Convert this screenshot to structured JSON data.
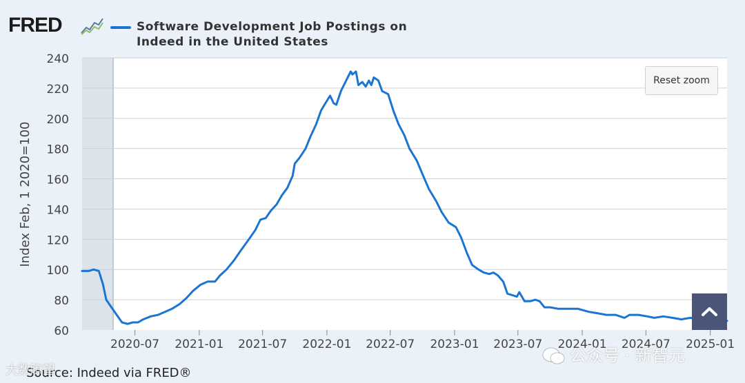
{
  "header": {
    "logo_text": "FRED",
    "legend_label_line1": "Software Development Job Postings on",
    "legend_label_line2": "Indeed in the United States"
  },
  "controls": {
    "reset_zoom_label": "Reset zoom",
    "scroll_top_icon": "chevron-up-icon"
  },
  "footer": {
    "source": "Source: Indeed via FRED®"
  },
  "watermarks": {
    "left": "大数瞭望",
    "right": "公众号 · 新智元"
  },
  "colors": {
    "series": "#1a75d2",
    "recession_shade": "#dde3ea",
    "plot_bg": "#ffffff",
    "page_bg": "#eaf1f8",
    "grid": "#d0d0d0"
  },
  "chart_data": {
    "type": "line",
    "title": "Software Development Job Postings on Indeed in the United States",
    "xlabel": "",
    "ylabel": "Index Feb, 1 2020=100",
    "ylim": [
      60,
      240
    ],
    "yticks": [
      60,
      80,
      100,
      120,
      140,
      160,
      180,
      200,
      220,
      240
    ],
    "xlim": [
      "2020-02-01",
      "2025-02-18"
    ],
    "xticks": [
      "2020-07",
      "2021-01",
      "2021-07",
      "2022-01",
      "2022-07",
      "2023-01",
      "2023-07",
      "2024-01",
      "2024-07",
      "2025-01"
    ],
    "grid": true,
    "legend_position": "top",
    "recession_shading": [
      "2020-02-01",
      "2020-04-30"
    ],
    "series": [
      {
        "name": "Software Development Job Postings on Indeed in the United States",
        "points": [
          [
            "2020-02-01",
            99
          ],
          [
            "2020-02-20",
            99
          ],
          [
            "2020-03-05",
            100
          ],
          [
            "2020-03-20",
            99
          ],
          [
            "2020-04-01",
            90
          ],
          [
            "2020-04-10",
            80
          ],
          [
            "2020-04-25",
            75
          ],
          [
            "2020-05-10",
            70
          ],
          [
            "2020-05-25",
            65
          ],
          [
            "2020-06-10",
            64
          ],
          [
            "2020-06-25",
            65
          ],
          [
            "2020-07-10",
            65
          ],
          [
            "2020-07-25",
            67
          ],
          [
            "2020-08-15",
            69
          ],
          [
            "2020-09-05",
            70
          ],
          [
            "2020-09-25",
            72
          ],
          [
            "2020-10-15",
            74
          ],
          [
            "2020-11-05",
            77
          ],
          [
            "2020-11-25",
            81
          ],
          [
            "2020-12-15",
            86
          ],
          [
            "2021-01-05",
            90
          ],
          [
            "2021-01-25",
            92
          ],
          [
            "2021-02-15",
            92
          ],
          [
            "2021-03-01",
            96
          ],
          [
            "2021-03-20",
            100
          ],
          [
            "2021-04-10",
            106
          ],
          [
            "2021-05-01",
            113
          ],
          [
            "2021-05-20",
            119
          ],
          [
            "2021-06-10",
            126
          ],
          [
            "2021-06-25",
            133
          ],
          [
            "2021-07-10",
            134
          ],
          [
            "2021-07-25",
            139
          ],
          [
            "2021-08-10",
            143
          ],
          [
            "2021-08-25",
            149
          ],
          [
            "2021-09-10",
            154
          ],
          [
            "2021-09-25",
            162
          ],
          [
            "2021-10-01",
            170
          ],
          [
            "2021-10-15",
            174
          ],
          [
            "2021-11-01",
            180
          ],
          [
            "2021-11-15",
            188
          ],
          [
            "2021-12-01",
            196
          ],
          [
            "2021-12-15",
            205
          ],
          [
            "2021-12-25",
            209
          ],
          [
            "2022-01-10",
            215
          ],
          [
            "2022-01-20",
            210
          ],
          [
            "2022-01-28",
            209
          ],
          [
            "2022-02-10",
            218
          ],
          [
            "2022-02-25",
            225
          ],
          [
            "2022-03-10",
            231
          ],
          [
            "2022-03-15",
            229
          ],
          [
            "2022-03-25",
            231
          ],
          [
            "2022-04-01",
            222
          ],
          [
            "2022-04-12",
            224
          ],
          [
            "2022-04-22",
            221
          ],
          [
            "2022-05-01",
            225
          ],
          [
            "2022-05-08",
            222
          ],
          [
            "2022-05-15",
            227
          ],
          [
            "2022-05-28",
            225
          ],
          [
            "2022-06-08",
            218
          ],
          [
            "2022-06-25",
            216
          ],
          [
            "2022-07-10",
            205
          ],
          [
            "2022-07-25",
            196
          ],
          [
            "2022-08-10",
            189
          ],
          [
            "2022-08-25",
            180
          ],
          [
            "2022-09-15",
            172
          ],
          [
            "2022-10-05",
            161
          ],
          [
            "2022-10-20",
            153
          ],
          [
            "2022-11-10",
            145
          ],
          [
            "2022-11-25",
            138
          ],
          [
            "2022-12-15",
            131
          ],
          [
            "2023-01-05",
            128
          ],
          [
            "2023-01-20",
            121
          ],
          [
            "2023-02-05",
            111
          ],
          [
            "2023-02-20",
            103
          ],
          [
            "2023-03-10",
            100
          ],
          [
            "2023-03-25",
            98
          ],
          [
            "2023-04-10",
            97
          ],
          [
            "2023-04-22",
            98
          ],
          [
            "2023-05-05",
            96
          ],
          [
            "2023-05-20",
            92
          ],
          [
            "2023-06-01",
            84
          ],
          [
            "2023-06-15",
            83
          ],
          [
            "2023-06-28",
            82
          ],
          [
            "2023-07-05",
            85
          ],
          [
            "2023-07-20",
            79
          ],
          [
            "2023-08-05",
            79
          ],
          [
            "2023-08-20",
            80
          ],
          [
            "2023-09-01",
            79
          ],
          [
            "2023-09-15",
            75
          ],
          [
            "2023-10-01",
            75
          ],
          [
            "2023-10-25",
            74
          ],
          [
            "2023-11-20",
            74
          ],
          [
            "2023-12-20",
            74
          ],
          [
            "2024-01-20",
            72
          ],
          [
            "2024-02-15",
            71
          ],
          [
            "2024-03-10",
            70
          ],
          [
            "2024-04-05",
            70
          ],
          [
            "2024-05-01",
            68
          ],
          [
            "2024-05-15",
            70
          ],
          [
            "2024-06-10",
            70
          ],
          [
            "2024-07-05",
            69
          ],
          [
            "2024-07-25",
            68
          ],
          [
            "2024-08-20",
            69
          ],
          [
            "2024-09-15",
            68
          ],
          [
            "2024-10-10",
            67
          ],
          [
            "2024-11-05",
            68
          ],
          [
            "2024-12-01",
            67
          ],
          [
            "2024-12-25",
            68
          ],
          [
            "2025-01-15",
            67
          ],
          [
            "2025-02-01",
            66
          ],
          [
            "2025-02-18",
            66
          ]
        ]
      }
    ]
  }
}
